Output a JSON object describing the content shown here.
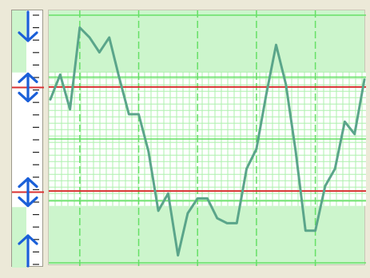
{
  "chart_data": {
    "type": "line",
    "xlim": [
      0,
      32
    ],
    "ylim": [
      0,
      100
    ],
    "x": [
      0,
      1,
      2,
      3,
      4,
      5,
      6,
      7,
      8,
      9,
      10,
      11,
      12,
      13,
      14,
      15,
      16,
      17,
      18,
      19,
      20,
      21,
      22,
      23,
      24,
      25,
      26,
      27,
      28,
      29,
      30,
      31,
      32
    ],
    "values": [
      66,
      76,
      62,
      95,
      91,
      85,
      91,
      75,
      60,
      60,
      45,
      21,
      28,
      3,
      20,
      26,
      26,
      18,
      16,
      16,
      38,
      46,
      68,
      88,
      72,
      45,
      13,
      13,
      31,
      38,
      57,
      52,
      74
    ],
    "series_color": "#5aa58a",
    "grid": true,
    "shaded_band": [
      23,
      77
    ],
    "threshold_lines": [
      29,
      71
    ],
    "threshold_color": "#d83030"
  },
  "colors": {
    "background": "#ece9d8",
    "plot_outside": "#ccf5cc",
    "plot_band": "#ffffff",
    "minor_grid": "#aef0ae",
    "major_grid": "#66e066",
    "handle_blue": "#1a5fd8"
  },
  "scale_strip": {
    "handles": [
      {
        "icon": "arrow-down-icon",
        "value": 100
      },
      {
        "icon": "double-arrow-vertical-icon",
        "value": 71
      },
      {
        "icon": "double-arrow-vertical-icon",
        "value": 29
      },
      {
        "icon": "arrow-up-icon",
        "value": 0
      }
    ]
  }
}
